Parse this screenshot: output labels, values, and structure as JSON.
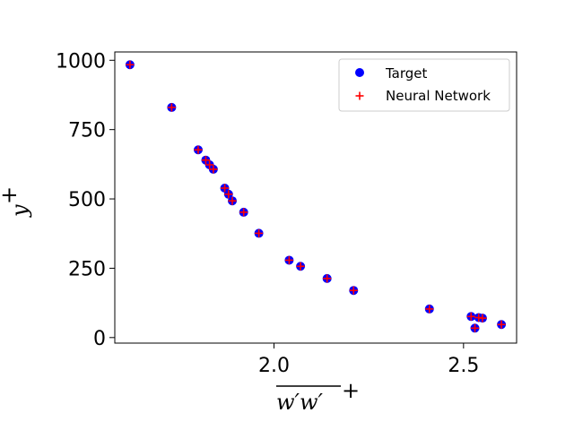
{
  "chart_data": {
    "type": "scatter",
    "xlabel": "w'w'+",
    "ylabel": "y+",
    "xlim": [
      1.58,
      2.64
    ],
    "ylim": [
      -20,
      1030
    ],
    "xticks": [
      2.0,
      2.5
    ],
    "xtick_labels": [
      "2.0",
      "2.5"
    ],
    "yticks": [
      0,
      250,
      500,
      750,
      1000
    ],
    "ytick_labels": [
      "0",
      "250",
      "500",
      "750",
      "1000"
    ],
    "grid": false,
    "legend_position": "top-right",
    "series": [
      {
        "name": "Target",
        "marker": "circle",
        "color": "#0000ff",
        "points": [
          [
            1.62,
            984
          ],
          [
            1.73,
            830
          ],
          [
            1.8,
            677
          ],
          [
            1.82,
            640
          ],
          [
            1.83,
            623
          ],
          [
            1.84,
            607
          ],
          [
            1.87,
            539
          ],
          [
            1.88,
            517
          ],
          [
            1.89,
            493
          ],
          [
            1.92,
            452
          ],
          [
            1.96,
            376
          ],
          [
            2.04,
            279
          ],
          [
            2.07,
            257
          ],
          [
            2.14,
            213
          ],
          [
            2.21,
            170
          ],
          [
            2.41,
            103
          ],
          [
            2.52,
            76
          ],
          [
            2.54,
            72
          ],
          [
            2.55,
            70
          ],
          [
            2.53,
            34
          ],
          [
            2.6,
            47
          ]
        ]
      },
      {
        "name": "Neural Network",
        "marker": "plus",
        "color": "#ff0000",
        "points": [
          [
            1.62,
            984
          ],
          [
            1.73,
            830
          ],
          [
            1.8,
            677
          ],
          [
            1.82,
            640
          ],
          [
            1.83,
            623
          ],
          [
            1.84,
            607
          ],
          [
            1.87,
            539
          ],
          [
            1.88,
            517
          ],
          [
            1.89,
            493
          ],
          [
            1.92,
            452
          ],
          [
            1.96,
            376
          ],
          [
            2.04,
            279
          ],
          [
            2.07,
            257
          ],
          [
            2.14,
            213
          ],
          [
            2.21,
            170
          ],
          [
            2.41,
            103
          ],
          [
            2.52,
            76
          ],
          [
            2.54,
            72
          ],
          [
            2.55,
            70
          ],
          [
            2.53,
            34
          ],
          [
            2.6,
            47
          ]
        ]
      }
    ]
  }
}
